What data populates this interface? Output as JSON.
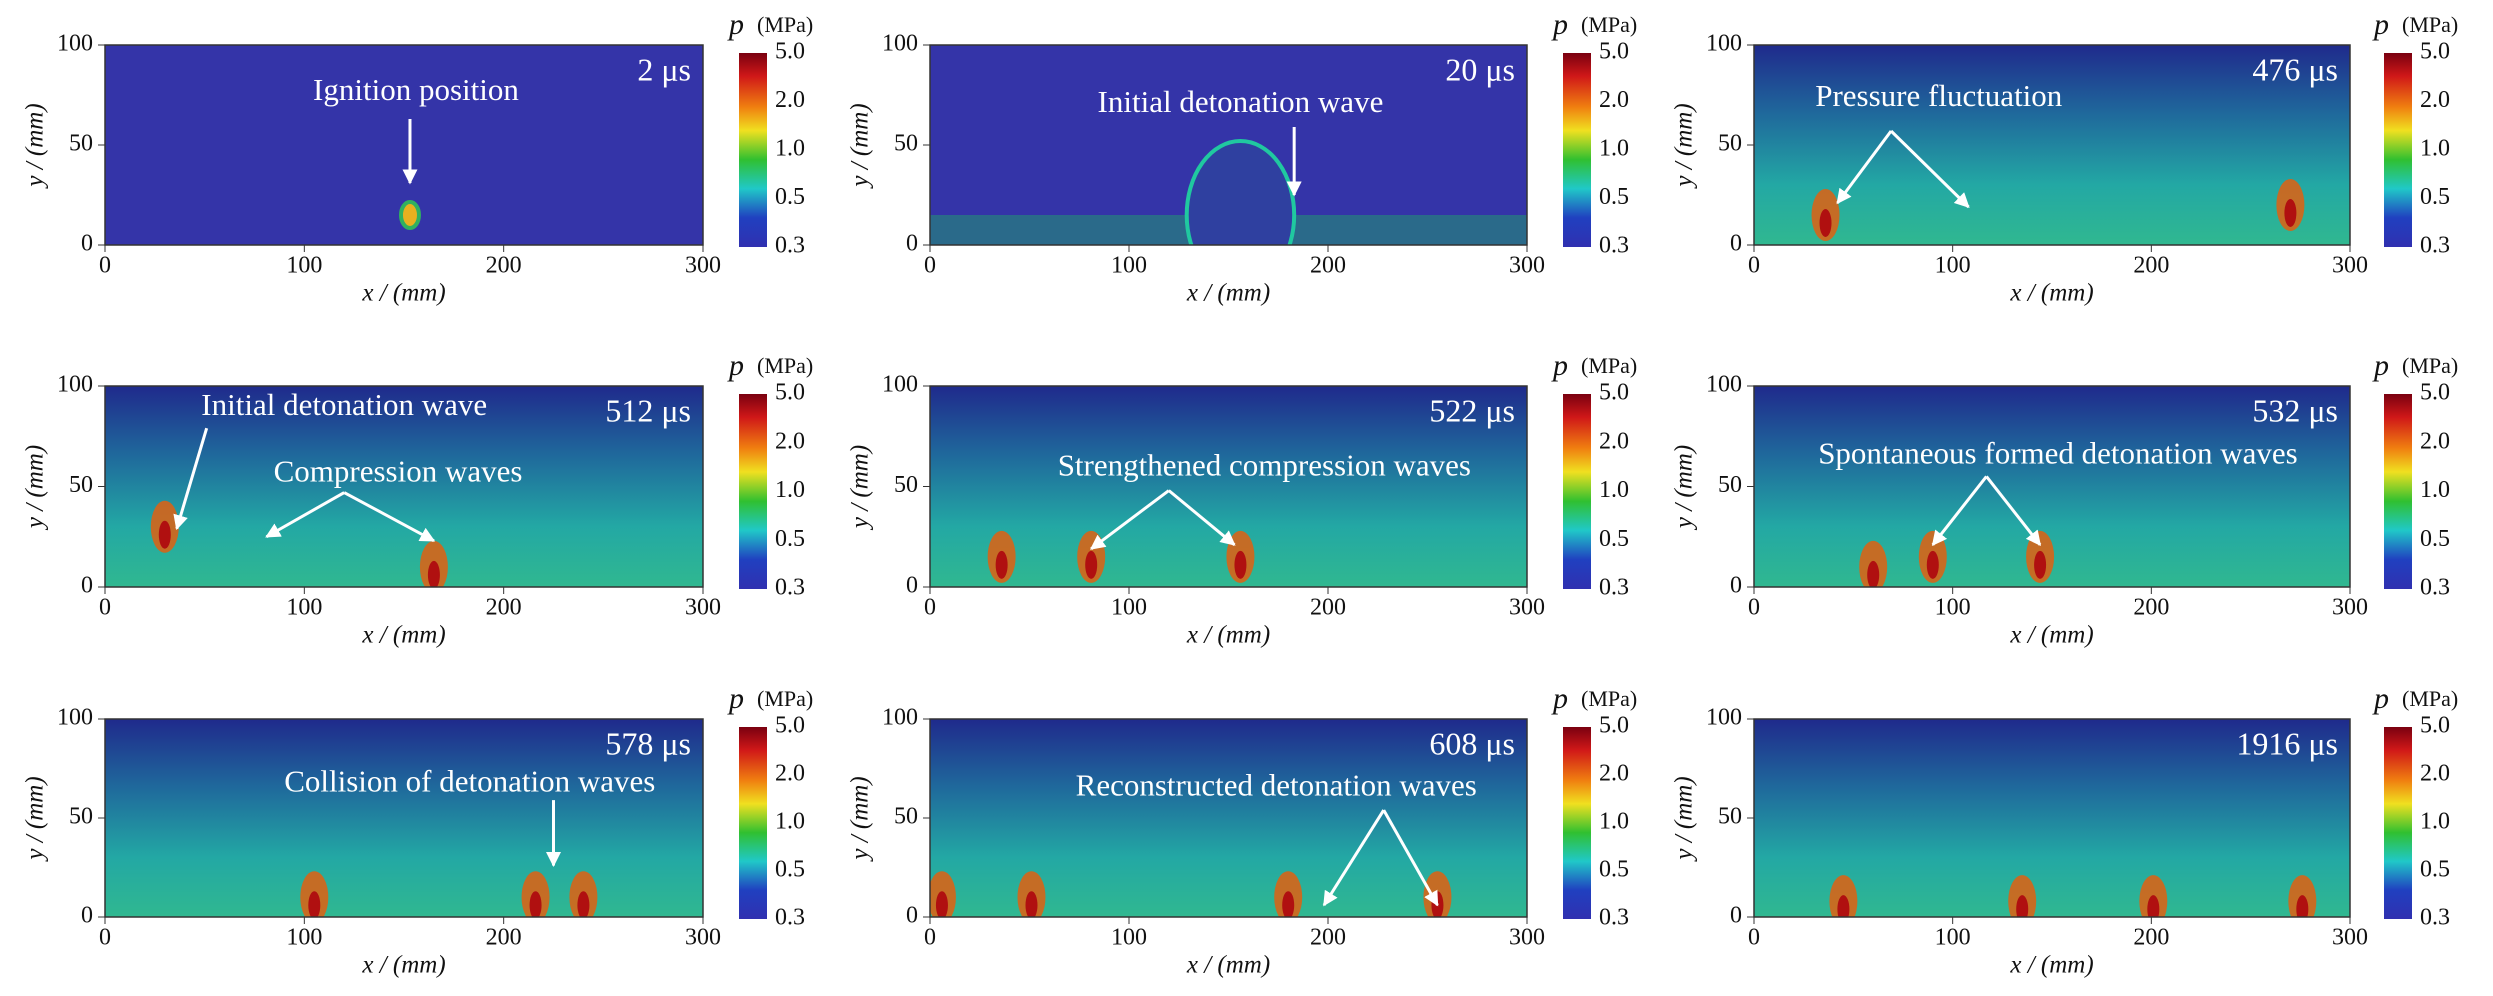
{
  "panels": [
    {
      "time": "2 μs",
      "annotations": [
        "Ignition position"
      ]
    },
    {
      "time": "20 μs",
      "annotations": [
        "Initial detonation wave"
      ]
    },
    {
      "time": "476 μs",
      "annotations": [
        "Pressure fluctuation"
      ]
    },
    {
      "time": "512 μs",
      "annotations": [
        "Initial detonation wave",
        "Compression waves"
      ]
    },
    {
      "time": "522 μs",
      "annotations": [
        "Strengthened compression waves"
      ]
    },
    {
      "time": "532 μs",
      "annotations": [
        "Spontaneous formed detonation waves"
      ]
    },
    {
      "time": "578 μs",
      "annotations": [
        "Collision of detonation waves"
      ]
    },
    {
      "time": "608 μs",
      "annotations": [
        "Reconstructed detonation waves"
      ]
    },
    {
      "time": "1916 μs",
      "annotations": []
    }
  ],
  "axes": {
    "x_label": "x / (mm)",
    "y_label": "y / (mm)",
    "xticks": [
      "0",
      "100",
      "200",
      "300"
    ],
    "yticks": [
      "0",
      "50",
      "100"
    ]
  },
  "colorbar": {
    "symbol": "p",
    "unit": "(MPa)",
    "ticks": [
      "5.0",
      "2.0",
      "1.0",
      "0.5",
      "0.3"
    ]
  }
}
